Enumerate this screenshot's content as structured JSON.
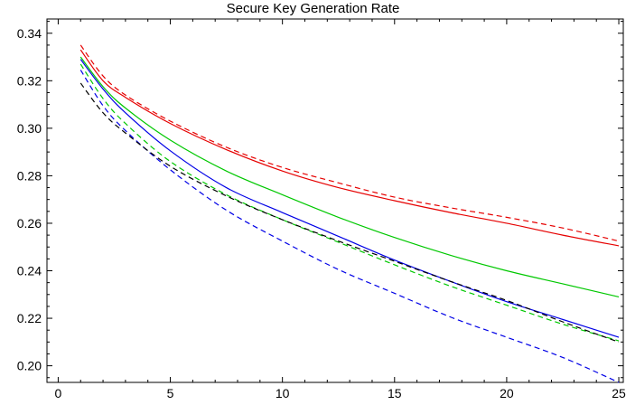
{
  "chart_data": {
    "type": "line",
    "title": "Secure Key Generation Rate",
    "xlabel": "",
    "ylabel": "",
    "xlim": [
      -0.5,
      25.2
    ],
    "ylim": [
      0.193,
      0.346
    ],
    "xticks": [
      0,
      5,
      10,
      15,
      20,
      25
    ],
    "yticks": [
      0.2,
      0.22,
      0.24,
      0.26,
      0.28,
      0.3,
      0.32,
      0.34
    ],
    "xtick_labels": [
      "0",
      "5",
      "10",
      "15",
      "20",
      "25"
    ],
    "ytick_labels": [
      "0.20",
      "0.22",
      "0.24",
      "0.26",
      "0.28",
      "0.30",
      "0.32",
      "0.34"
    ],
    "grid": false,
    "legend": "none",
    "series": [
      {
        "color": "#e60000",
        "style": "solid",
        "x": [
          1,
          2,
          3,
          5,
          7.5,
          10,
          12.5,
          15,
          17.5,
          20,
          22.5,
          25
        ],
        "values": [
          0.333,
          0.32,
          0.313,
          0.302,
          0.291,
          0.282,
          0.275,
          0.2695,
          0.2645,
          0.26,
          0.255,
          0.2505
        ]
      },
      {
        "color": "#e60000",
        "style": "dashed",
        "x": [
          1,
          2,
          3,
          5,
          7.5,
          10,
          12.5,
          15,
          17.5,
          20,
          22.5,
          25
        ],
        "values": [
          0.335,
          0.322,
          0.314,
          0.303,
          0.292,
          0.2835,
          0.277,
          0.271,
          0.2665,
          0.2625,
          0.258,
          0.2525
        ]
      },
      {
        "color": "#00c800",
        "style": "solid",
        "x": [
          1,
          2,
          3,
          5,
          7.5,
          10,
          12.5,
          15,
          17.5,
          20,
          22.5,
          25
        ],
        "values": [
          0.33,
          0.3175,
          0.3085,
          0.295,
          0.282,
          0.272,
          0.2625,
          0.254,
          0.2465,
          0.24,
          0.2345,
          0.229
        ]
      },
      {
        "color": "#00c800",
        "style": "dashed",
        "x": [
          1,
          2,
          3,
          5,
          7.5,
          10,
          12.5,
          15,
          17.5,
          20,
          22.5,
          25
        ],
        "values": [
          0.327,
          0.3125,
          0.302,
          0.286,
          0.272,
          0.2615,
          0.252,
          0.2425,
          0.2335,
          0.2255,
          0.2175,
          0.2105
        ]
      },
      {
        "color": "#0000e6",
        "style": "solid",
        "x": [
          1,
          2,
          3,
          5,
          7.5,
          10,
          12.5,
          15,
          17.5,
          20,
          22.5,
          25
        ],
        "values": [
          0.329,
          0.3165,
          0.3065,
          0.2905,
          0.275,
          0.2645,
          0.2545,
          0.2445,
          0.2355,
          0.227,
          0.2195,
          0.212
        ]
      },
      {
        "color": "#0000e6",
        "style": "dashed",
        "x": [
          1,
          2,
          3,
          5,
          7.5,
          10,
          12.5,
          15,
          17.5,
          20,
          22.5,
          25
        ],
        "values": [
          0.3245,
          0.3095,
          0.299,
          0.2825,
          0.2655,
          0.2525,
          0.2405,
          0.2305,
          0.2205,
          0.212,
          0.2035,
          0.193
        ]
      },
      {
        "color": "#000000",
        "style": "dashed",
        "x": [
          1,
          2,
          3,
          5,
          7.5,
          10,
          12.5,
          15,
          17.5,
          20,
          22.5,
          25
        ],
        "values": [
          0.319,
          0.3065,
          0.298,
          0.284,
          0.2715,
          0.2615,
          0.2525,
          0.244,
          0.2355,
          0.2275,
          0.2185,
          0.21
        ]
      }
    ]
  }
}
